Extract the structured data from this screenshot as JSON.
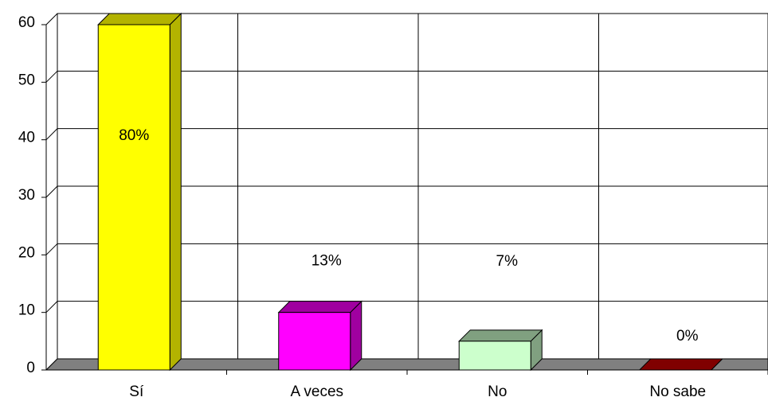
{
  "chart_data": {
    "type": "bar3d",
    "categories": [
      "Sí",
      "A veces",
      "No",
      "No sabe"
    ],
    "values": [
      60,
      10,
      5,
      0
    ],
    "colors": [
      "#ffff00",
      "#ff00ff",
      "#ccffcc",
      "#c00000"
    ],
    "side_colors": [
      "#b3b300",
      "#a000a0",
      "#80a080",
      "#800000"
    ],
    "annotations": [
      "80%",
      "13%",
      "7%",
      "0%"
    ],
    "ylim": [
      0,
      60
    ],
    "yticks": [
      0,
      10,
      20,
      30,
      40,
      50,
      60
    ],
    "grid": true
  }
}
